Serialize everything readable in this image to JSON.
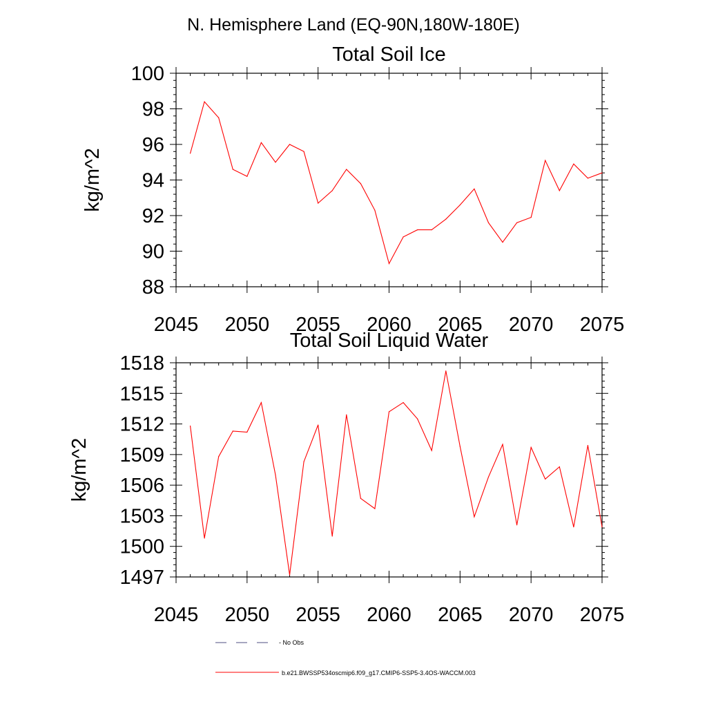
{
  "header": {
    "title": "N. Hemisphere Land (EQ-90N,180W-180E)"
  },
  "chart_data": [
    {
      "type": "line",
      "title": "Total Soil Ice",
      "xlabel": "",
      "ylabel": "kg/m^2",
      "xlim": [
        2045,
        2075
      ],
      "ylim": [
        88,
        100
      ],
      "xticks": [
        2045,
        2050,
        2055,
        2060,
        2065,
        2070,
        2075
      ],
      "yticks": [
        88,
        90,
        92,
        94,
        96,
        98,
        100
      ],
      "xtick_labels": [
        "2045",
        "2050",
        "2055",
        "2060",
        "2065",
        "2070",
        "2075"
      ],
      "ytick_labels": [
        "88",
        "90",
        "92",
        "94",
        "96",
        "98",
        "100"
      ],
      "series": [
        {
          "name": "b.e21.BWSSP534oscmip6.f09_g17.CMIP6-SSP5-3.4OS-WACCM.003",
          "color": "#ff0000",
          "x": [
            2046,
            2047,
            2048,
            2049,
            2050,
            2051,
            2052,
            2053,
            2054,
            2055,
            2056,
            2057,
            2058,
            2059,
            2060,
            2061,
            2062,
            2063,
            2064,
            2065,
            2066,
            2067,
            2068,
            2069,
            2070,
            2071,
            2072,
            2073,
            2074,
            2075
          ],
          "values": [
            95.5,
            98.4,
            97.5,
            94.6,
            94.2,
            96.1,
            95.0,
            96.0,
            95.6,
            92.7,
            93.4,
            94.6,
            93.8,
            92.3,
            89.3,
            90.8,
            91.2,
            91.2,
            91.8,
            92.6,
            93.5,
            91.6,
            90.5,
            91.6,
            91.9,
            95.1,
            93.4,
            94.9,
            94.1,
            94.4
          ]
        }
      ]
    },
    {
      "type": "line",
      "title": "Total Soil Liquid Water",
      "xlabel": "",
      "ylabel": "kg/m^2",
      "xlim": [
        2045,
        2075
      ],
      "ylim": [
        1497,
        1518
      ],
      "xticks": [
        2045,
        2050,
        2055,
        2060,
        2065,
        2070,
        2075
      ],
      "yticks": [
        1497,
        1500,
        1503,
        1506,
        1509,
        1512,
        1515,
        1518
      ],
      "xtick_labels": [
        "2045",
        "2050",
        "2055",
        "2060",
        "2065",
        "2070",
        "2075"
      ],
      "ytick_labels": [
        "1497",
        "1500",
        "1503",
        "1506",
        "1509",
        "1512",
        "1515",
        "1518"
      ],
      "series": [
        {
          "name": "b.e21.BWSSP534oscmip6.f09_g17.CMIP6-SSP5-3.4OS-WACCM.003",
          "color": "#ff0000",
          "x": [
            2046,
            2047,
            2048,
            2049,
            2050,
            2051,
            2052,
            2053,
            2054,
            2055,
            2056,
            2057,
            2058,
            2059,
            2060,
            2061,
            2062,
            2063,
            2064,
            2065,
            2066,
            2067,
            2068,
            2069,
            2070,
            2071,
            2072,
            2073,
            2074,
            2075
          ],
          "values": [
            1511.8,
            1500.8,
            1508.8,
            1511.3,
            1511.2,
            1514.1,
            1507.0,
            1497.2,
            1508.3,
            1511.9,
            1501.0,
            1512.9,
            1504.7,
            1503.7,
            1513.2,
            1514.1,
            1512.5,
            1509.4,
            1517.2,
            1509.8,
            1502.9,
            1506.8,
            1510.0,
            1502.1,
            1509.7,
            1506.6,
            1507.8,
            1501.9,
            1509.9,
            1501.9
          ]
        }
      ]
    }
  ],
  "legend": {
    "items": [
      {
        "label": "No Obs",
        "style": "dashed",
        "color": "#4d4d80"
      },
      {
        "label": "b.e21.BWSSP534oscmip6.f09_g17.CMIP6-SSP5-3.4OS-WACCM.003",
        "style": "solid",
        "color": "#ff0000"
      }
    ]
  }
}
